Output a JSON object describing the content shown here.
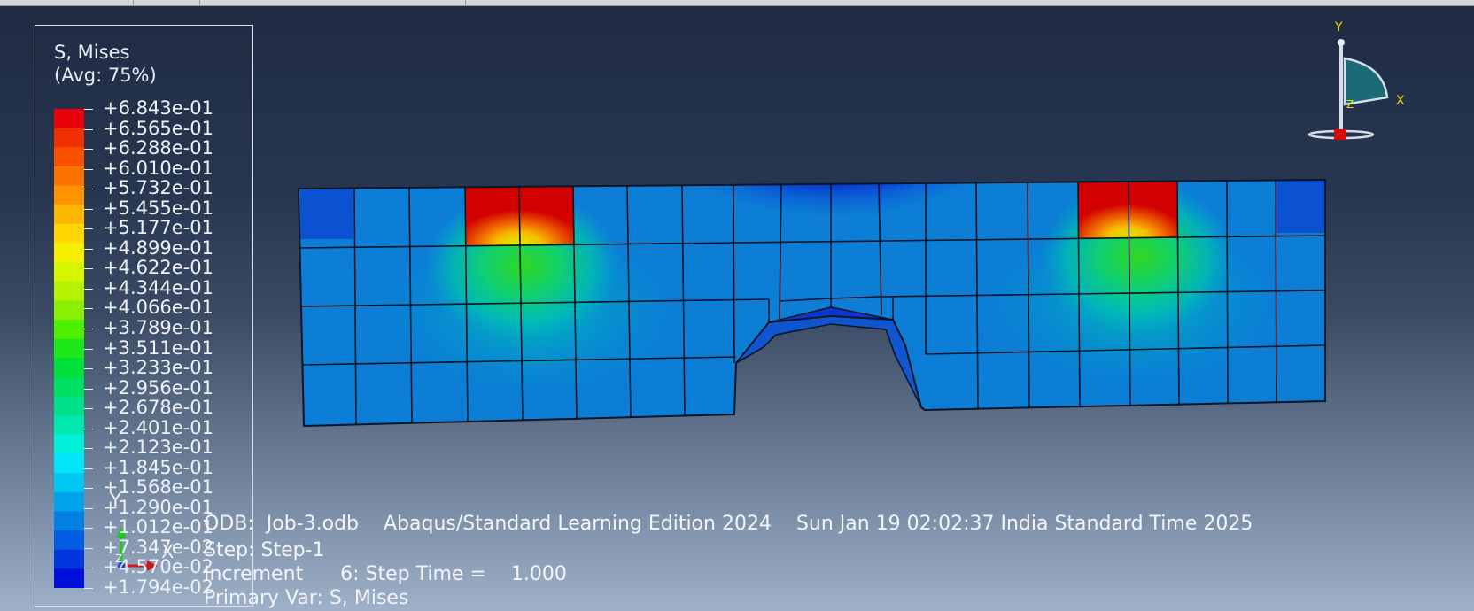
{
  "legend": {
    "title_line1": "S, Mises",
    "title_line2": "(Avg: 75%)",
    "values": [
      "+6.843e-01",
      "+6.565e-01",
      "+6.288e-01",
      "+6.010e-01",
      "+5.732e-01",
      "+5.455e-01",
      "+5.177e-01",
      "+4.899e-01",
      "+4.622e-01",
      "+4.344e-01",
      "+4.066e-01",
      "+3.789e-01",
      "+3.511e-01",
      "+3.233e-01",
      "+2.956e-01",
      "+2.678e-01",
      "+2.401e-01",
      "+2.123e-01",
      "+1.845e-01",
      "+1.568e-01",
      "+1.290e-01",
      "+1.012e-01",
      "+7.347e-02",
      "+4.570e-02",
      "+1.794e-02"
    ],
    "colors": [
      "#e8000a",
      "#f03000",
      "#f85200",
      "#fb7400",
      "#ff9400",
      "#ffb600",
      "#ffd600",
      "#f5f000",
      "#d8f500",
      "#b8f200",
      "#88f000",
      "#4ef000",
      "#1ee81a",
      "#00e038",
      "#00e060",
      "#00e088",
      "#00e8b0",
      "#00f0da",
      "#00e6f6",
      "#00c8f2",
      "#00a4ea",
      "#0080e4",
      "#005ce0",
      "#0036dc",
      "#0010da"
    ]
  },
  "info": {
    "odb_label": "ODB:",
    "odb_value": "Job-3.odb",
    "edition": "Abaqus/Standard Learning Edition 2024",
    "timestamp": "Sun Jan 19 02:02:37 India Standard Time 2025",
    "step": "Step: Step-1",
    "increment": "Increment      6: Step Time =    1.000",
    "primary_var": "Primary Var: S, Mises"
  },
  "triad": {
    "y": "Y",
    "x": "X",
    "z": "Z"
  },
  "view_cube": {
    "y": "Y",
    "x": "X",
    "z": "Z"
  },
  "colors": {
    "max": "#d40000",
    "mid": "#00b0c0",
    "low": "#0a3bd8",
    "edge": "#0c1426"
  }
}
